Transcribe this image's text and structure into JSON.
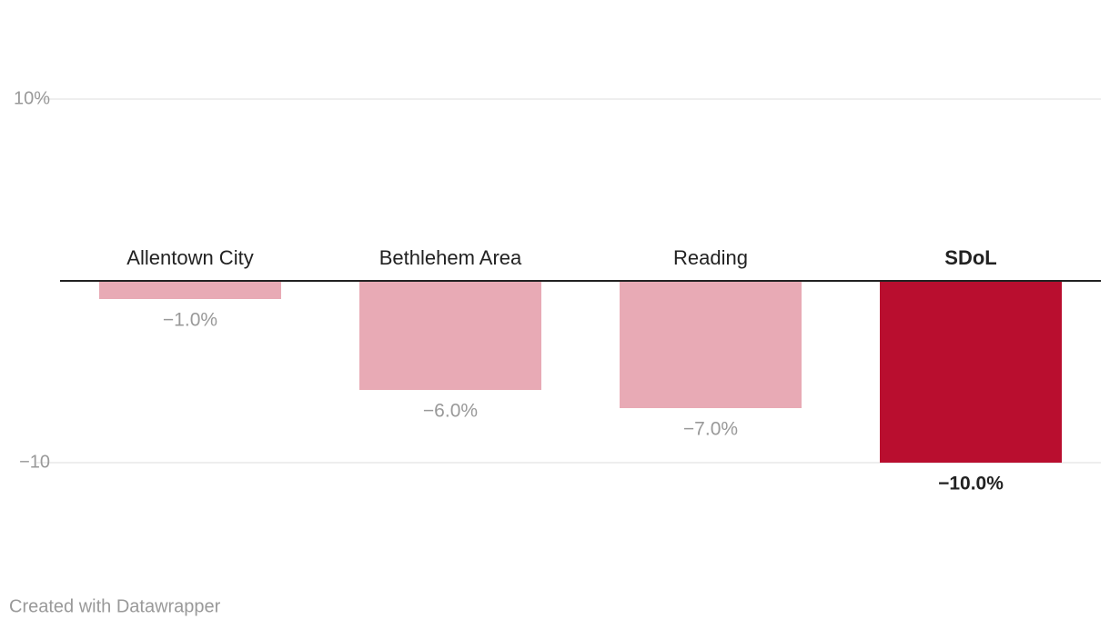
{
  "chart_data": {
    "type": "bar",
    "categories": [
      "Allentown City",
      "Bethlehem Area",
      "Reading",
      "SDoL"
    ],
    "values": [
      -1,
      -6,
      -7,
      -10
    ],
    "value_labels": [
      "−1.0%",
      "−6.0%",
      "−7.0%",
      "−10.0%"
    ],
    "colors": [
      "#e8aab5",
      "#e8aab5",
      "#e8aab5",
      "#b90e2f"
    ],
    "ylim": [
      -10,
      10
    ],
    "yticks": [
      {
        "value": 10,
        "label": "10%"
      },
      {
        "value": -10,
        "label": "−10"
      }
    ],
    "grid": true,
    "footer": "Created with Datawrapper"
  }
}
